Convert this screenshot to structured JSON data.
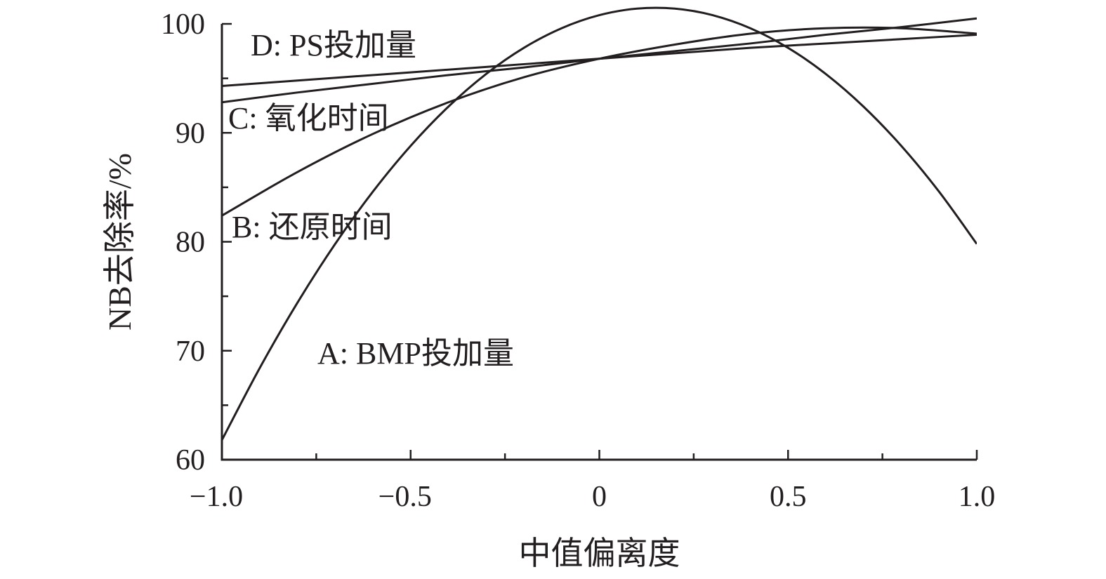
{
  "chart_data": {
    "type": "line",
    "title": "",
    "xlabel": "中值偏离度",
    "ylabel": "NB去除率/%",
    "xlim": [
      -1.0,
      1.0
    ],
    "ylim": [
      60,
      100
    ],
    "x_ticks": [
      -1.0,
      -0.5,
      0,
      0.5,
      1.0
    ],
    "x_tick_labels": [
      "−1.0",
      "−0.5",
      "0",
      "0.5",
      "1.0"
    ],
    "y_ticks": [
      60,
      70,
      80,
      90,
      100
    ],
    "y_tick_labels": [
      "60",
      "70",
      "80",
      "90",
      "100"
    ],
    "grid": false,
    "legend": "none",
    "line_color": "#231f20",
    "series": [
      {
        "name": "A: BMP投加量",
        "x": [
          -1.0,
          -0.9,
          -0.8,
          -0.7,
          -0.6,
          -0.5,
          -0.4,
          -0.3,
          -0.2,
          -0.1,
          0.0,
          0.1,
          0.2,
          0.3,
          0.4,
          0.5,
          0.6,
          0.7,
          0.8,
          0.9,
          1.0
        ],
        "y": [
          61.8,
          68.4,
          74.4,
          79.8,
          84.6,
          88.8,
          92.4,
          95.4,
          97.8,
          99.6,
          100.8,
          101.4,
          101.4,
          100.8,
          99.6,
          97.8,
          95.4,
          92.4,
          88.8,
          84.6,
          79.8
        ]
      },
      {
        "name": "B: 还原时间",
        "x": [
          -1.0,
          -0.8,
          -0.6,
          -0.4,
          -0.2,
          0.0,
          0.2,
          0.4,
          0.6,
          0.8,
          1.0
        ],
        "y": [
          82.4,
          86.4,
          89.9,
          92.8,
          95.1,
          96.8,
          98.1,
          99.1,
          99.6,
          99.6,
          99.1
        ]
      },
      {
        "name": "C: 氧化时间",
        "x": [
          -1.0,
          -0.8,
          -0.6,
          -0.4,
          -0.2,
          0.0,
          0.2,
          0.4,
          0.6,
          0.8,
          1.0
        ],
        "y": [
          92.8,
          93.7,
          94.5,
          95.3,
          96.0,
          96.8,
          97.5,
          98.2,
          99.0,
          99.7,
          100.5
        ]
      },
      {
        "name": "D: PS投加量",
        "x": [
          -1.0,
          -0.8,
          -0.6,
          -0.4,
          -0.2,
          0.0,
          0.2,
          0.4,
          0.6,
          0.8,
          1.0
        ],
        "y": [
          94.3,
          94.8,
          95.3,
          95.8,
          96.3,
          96.8,
          97.3,
          97.8,
          98.2,
          98.6,
          99.0
        ]
      }
    ]
  }
}
